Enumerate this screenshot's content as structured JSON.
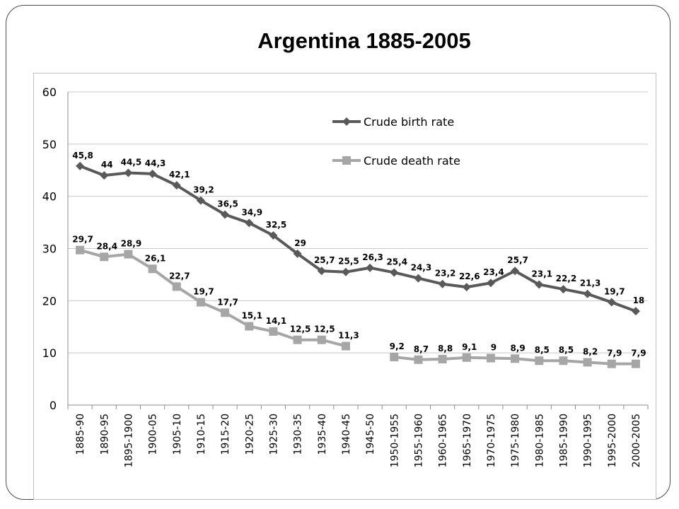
{
  "title": "Argentina 1885-2005",
  "chart_data": {
    "type": "line",
    "title": "",
    "xlabel": "",
    "ylabel": "",
    "ylim": [
      0,
      60
    ],
    "yticks": [
      0,
      10,
      20,
      30,
      40,
      50,
      60
    ],
    "grid": true,
    "legend_position": "top-right",
    "categories": [
      "1885-90",
      "1890-95",
      "1895-1900",
      "1900-05",
      "1905-10",
      "1910-15",
      "1915-20",
      "1920-25",
      "1925-30",
      "1930-35",
      "1935-40",
      "1940-45",
      "1945-50",
      "1950-1955",
      "1955-1960",
      "1960-1965",
      "1965-1970",
      "1970-1975",
      "1975-1980",
      "1980-1985",
      "1985-1990",
      "1990-1995",
      "1995-2000",
      "2000-2005"
    ],
    "series": [
      {
        "name": "Crude birth rate",
        "color": "#595959",
        "marker": "diamond",
        "values": [
          45.8,
          44,
          44.5,
          44.3,
          42.1,
          39.2,
          36.5,
          34.9,
          32.5,
          29,
          25.7,
          25.5,
          26.3,
          25.4,
          24.3,
          23.2,
          22.6,
          23.4,
          25.7,
          23.1,
          22.2,
          21.3,
          19.7,
          18
        ],
        "labels": [
          "45,8",
          "44",
          "44,5",
          "44,3",
          "42,1",
          "39,2",
          "36,5",
          "34,9",
          "32,5",
          "29",
          "25,7",
          "25,5",
          "26,3",
          "25,4",
          "24,3",
          "23,2",
          "22,6",
          "23,4",
          "25,7",
          "23,1",
          "22,2",
          "21,3",
          "19,7",
          "18"
        ]
      },
      {
        "name": "Crude death rate",
        "color": "#a6a6a6",
        "marker": "square",
        "values": [
          29.7,
          28.4,
          28.9,
          26.1,
          22.7,
          19.7,
          17.7,
          15.1,
          14.1,
          12.5,
          12.5,
          11.3,
          null,
          9.2,
          8.7,
          8.8,
          9.1,
          9,
          8.9,
          8.5,
          8.5,
          8.2,
          7.9,
          7.9
        ],
        "labels": [
          "29,7",
          "28,4",
          "28,9",
          "26,1",
          "22,7",
          "19,7",
          "17,7",
          "15,1",
          "14,1",
          "12,5",
          "12,5",
          "11,3",
          "",
          "9,2",
          "8,7",
          "8,8",
          "9,1",
          "9",
          "8,9",
          "8,5",
          "8,5",
          "8,2",
          "7,9",
          "7,9"
        ]
      }
    ]
  }
}
